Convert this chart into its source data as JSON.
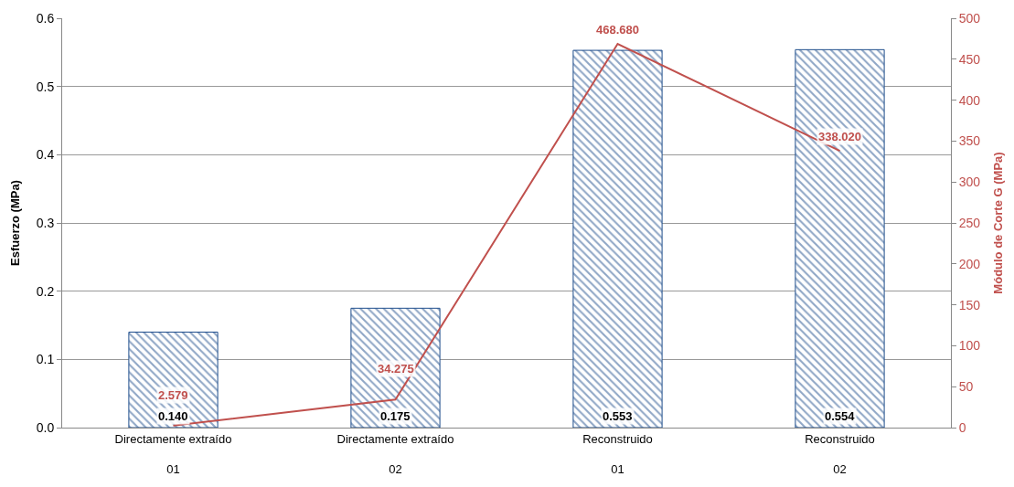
{
  "chart_data": {
    "type": "bar",
    "categories": [
      "Directamente extraído\n01",
      "Directamente extraído\n02",
      "Reconstruido\n01",
      "Reconstruido\n02"
    ],
    "ylabel": "Esfuerzo (MPa)",
    "y2label": "Módulo de Corte G (MPa)",
    "series": [
      {
        "color": "#1f4e8c",
        "values": [
          0.14,
          0.175,
          0.553,
          0.554
        ],
        "value_labels": [
          "0.140",
          "0.175",
          "0.553",
          "0.554"
        ]
      },
      {
        "type": "line",
        "axis": "y2",
        "color": "#c0504d",
        "values": [
          2.579,
          34.275,
          468.68,
          338.02
        ],
        "value_labels": [
          "2.579",
          "34.275",
          "468.680",
          "338.020"
        ]
      }
    ],
    "ylim": [
      0,
      0.6
    ],
    "yticks": [
      {
        "value": 0,
        "label": "0.0"
      },
      {
        "value": 0.1,
        "label": "0.1"
      },
      {
        "value": 0.2,
        "label": "0.2"
      },
      {
        "value": 0.3,
        "label": "0.3"
      },
      {
        "value": 0.4,
        "label": "0.4"
      },
      {
        "value": 0.5,
        "label": "0.5"
      },
      {
        "value": 0.6,
        "label": "0.6"
      }
    ],
    "y2lim": [
      0,
      500
    ],
    "y2ticks": [
      0,
      50,
      100,
      150,
      200,
      250,
      300,
      350,
      400,
      450,
      500
    ],
    "grid": "y",
    "marker": "none",
    "line_style": "solid"
  }
}
